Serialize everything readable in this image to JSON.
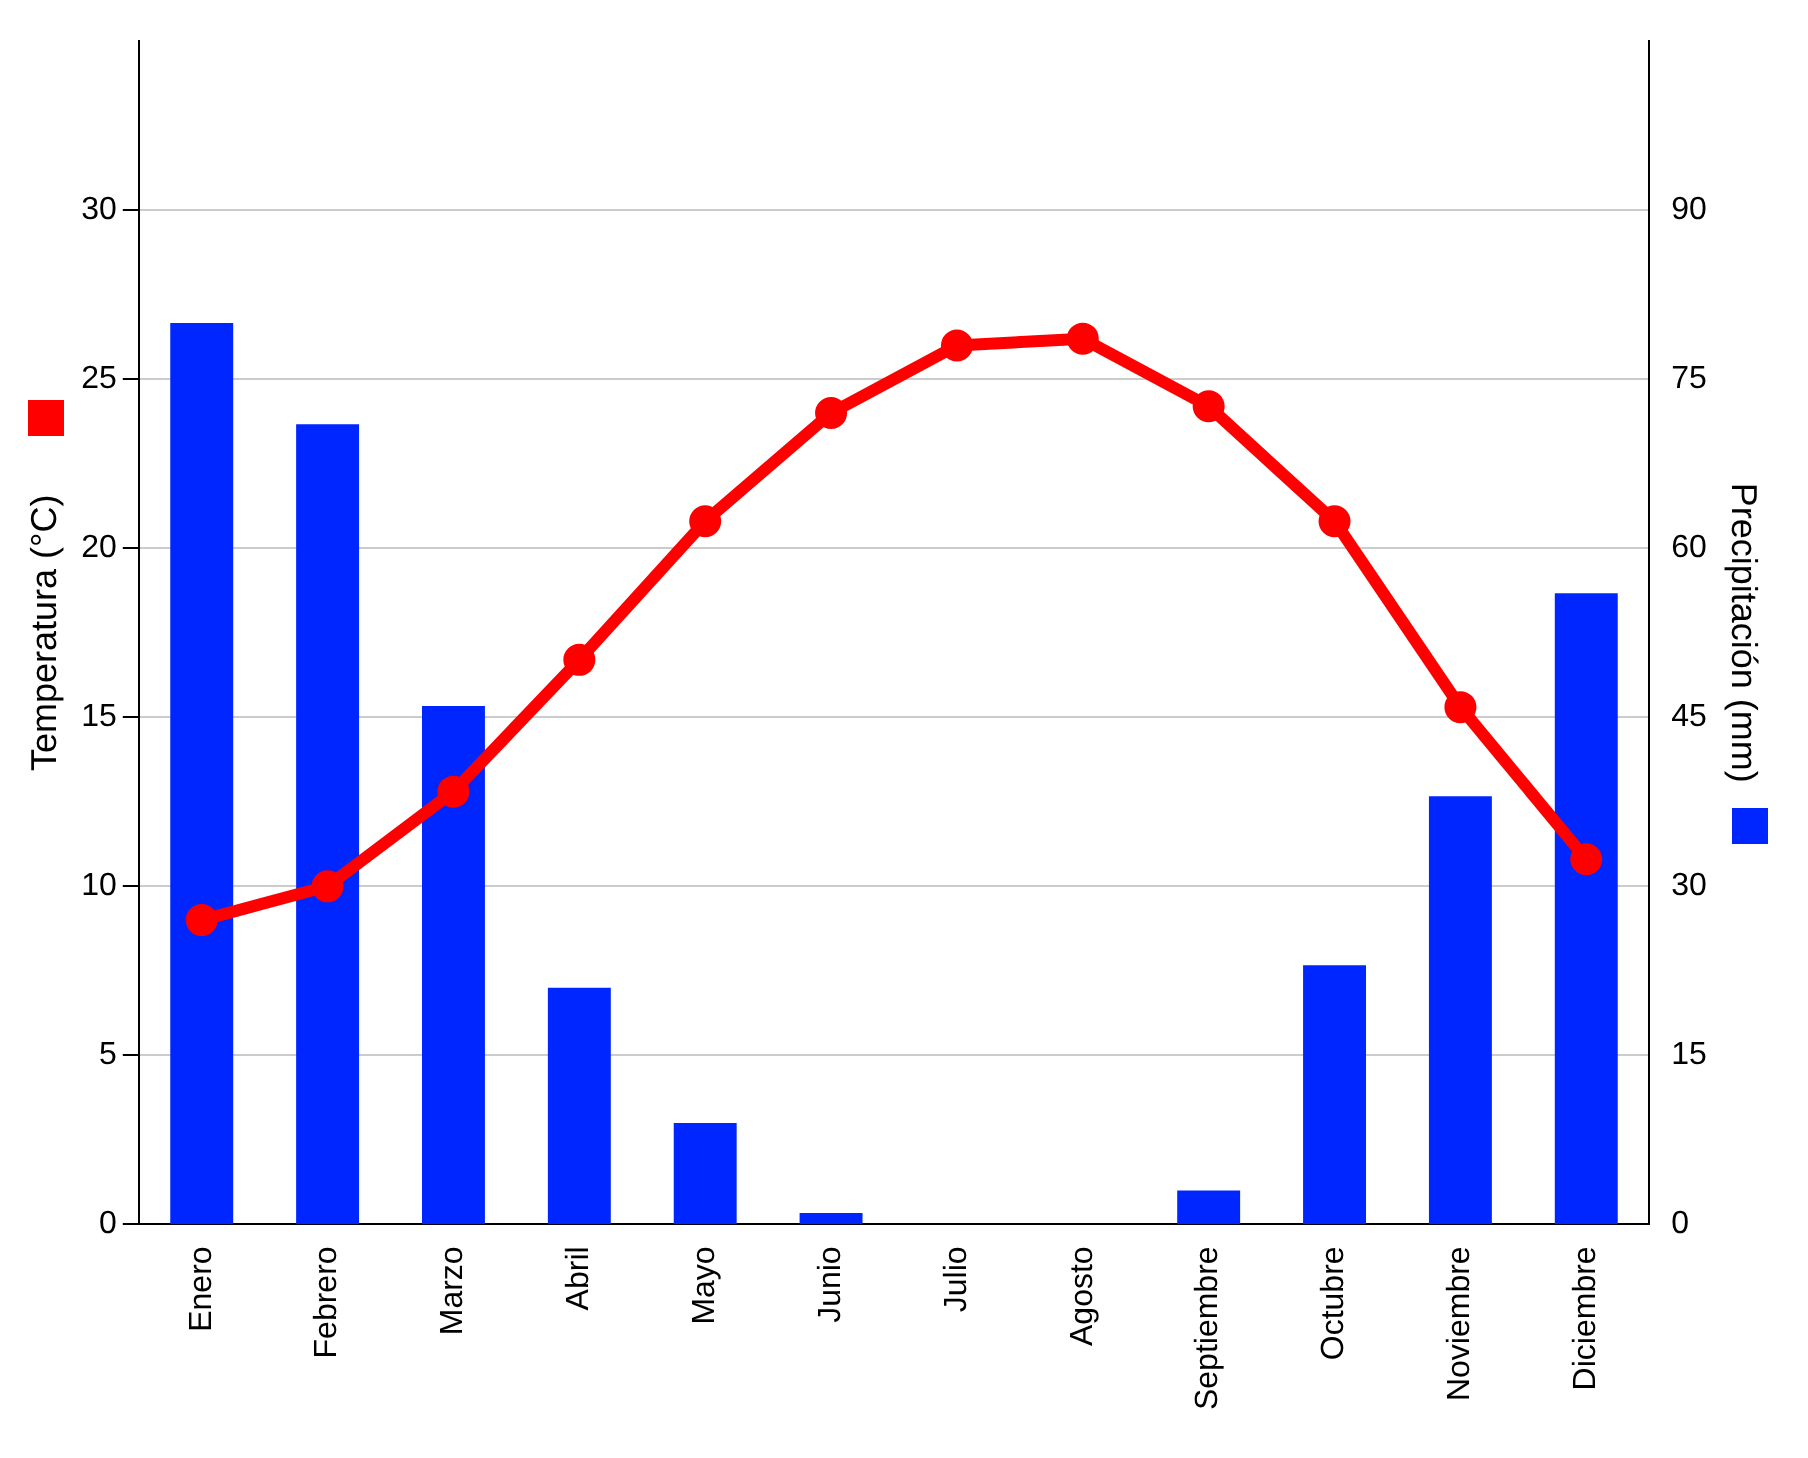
{
  "chart_data": {
    "type": "bar",
    "ylabel": "Temperatura (°C)",
    "y2label": "Precipitación (mm)",
    "categories": [
      "Enero",
      "Febrero",
      "Marzo",
      "Abril",
      "Mayo",
      "Junio",
      "Julio",
      "Agosto",
      "Septiembre",
      "Octubre",
      "Noviembre",
      "Diciembre"
    ],
    "series": [
      {
        "axis": "y2",
        "color": "#0026ff",
        "values": [
          80,
          71,
          46,
          21,
          9,
          1,
          0,
          0,
          3,
          23,
          38,
          56
        ]
      },
      {
        "type": "line",
        "axis": "y",
        "color": "#ff0000",
        "marker": "circle",
        "values": [
          9.0,
          10.0,
          12.8,
          16.7,
          20.8,
          24.0,
          26.0,
          26.2,
          24.2,
          20.8,
          15.3,
          10.8
        ]
      }
    ],
    "ylim": [
      0,
      35
    ],
    "yticks": [
      0,
      5,
      10,
      15,
      20,
      25,
      30
    ],
    "y2lim": [
      0,
      105
    ],
    "y2ticks": [
      0,
      15,
      30,
      45,
      60,
      75,
      90
    ],
    "grid": "y",
    "legend": false
  }
}
